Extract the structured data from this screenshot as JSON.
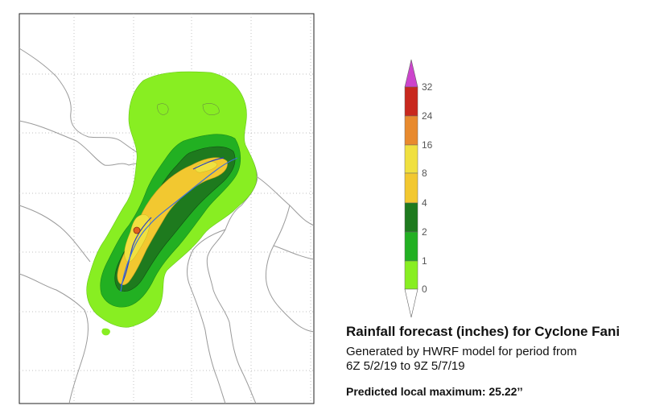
{
  "legend": {
    "labels": [
      "32",
      "24",
      "16",
      "8",
      "4",
      "2",
      "1",
      "0"
    ],
    "colors": {
      "above_32": "#cc44cc",
      "24_32": "#c8281e",
      "16_24": "#e88a2e",
      "8_16": "#f0e040",
      "4_8": "#f2c830",
      "2_4": "#1e7a1e",
      "1_2": "#22b022",
      "0_1": "#88ee22"
    }
  },
  "caption": {
    "title": "Rainfall forecast (inches) for Cyclone Fani",
    "line1": "Generated by HWRF model for period from",
    "line2": "6Z 5/2/19 to 9Z 5/7/19",
    "max": "Predicted local maximum:  25.22’’"
  }
}
